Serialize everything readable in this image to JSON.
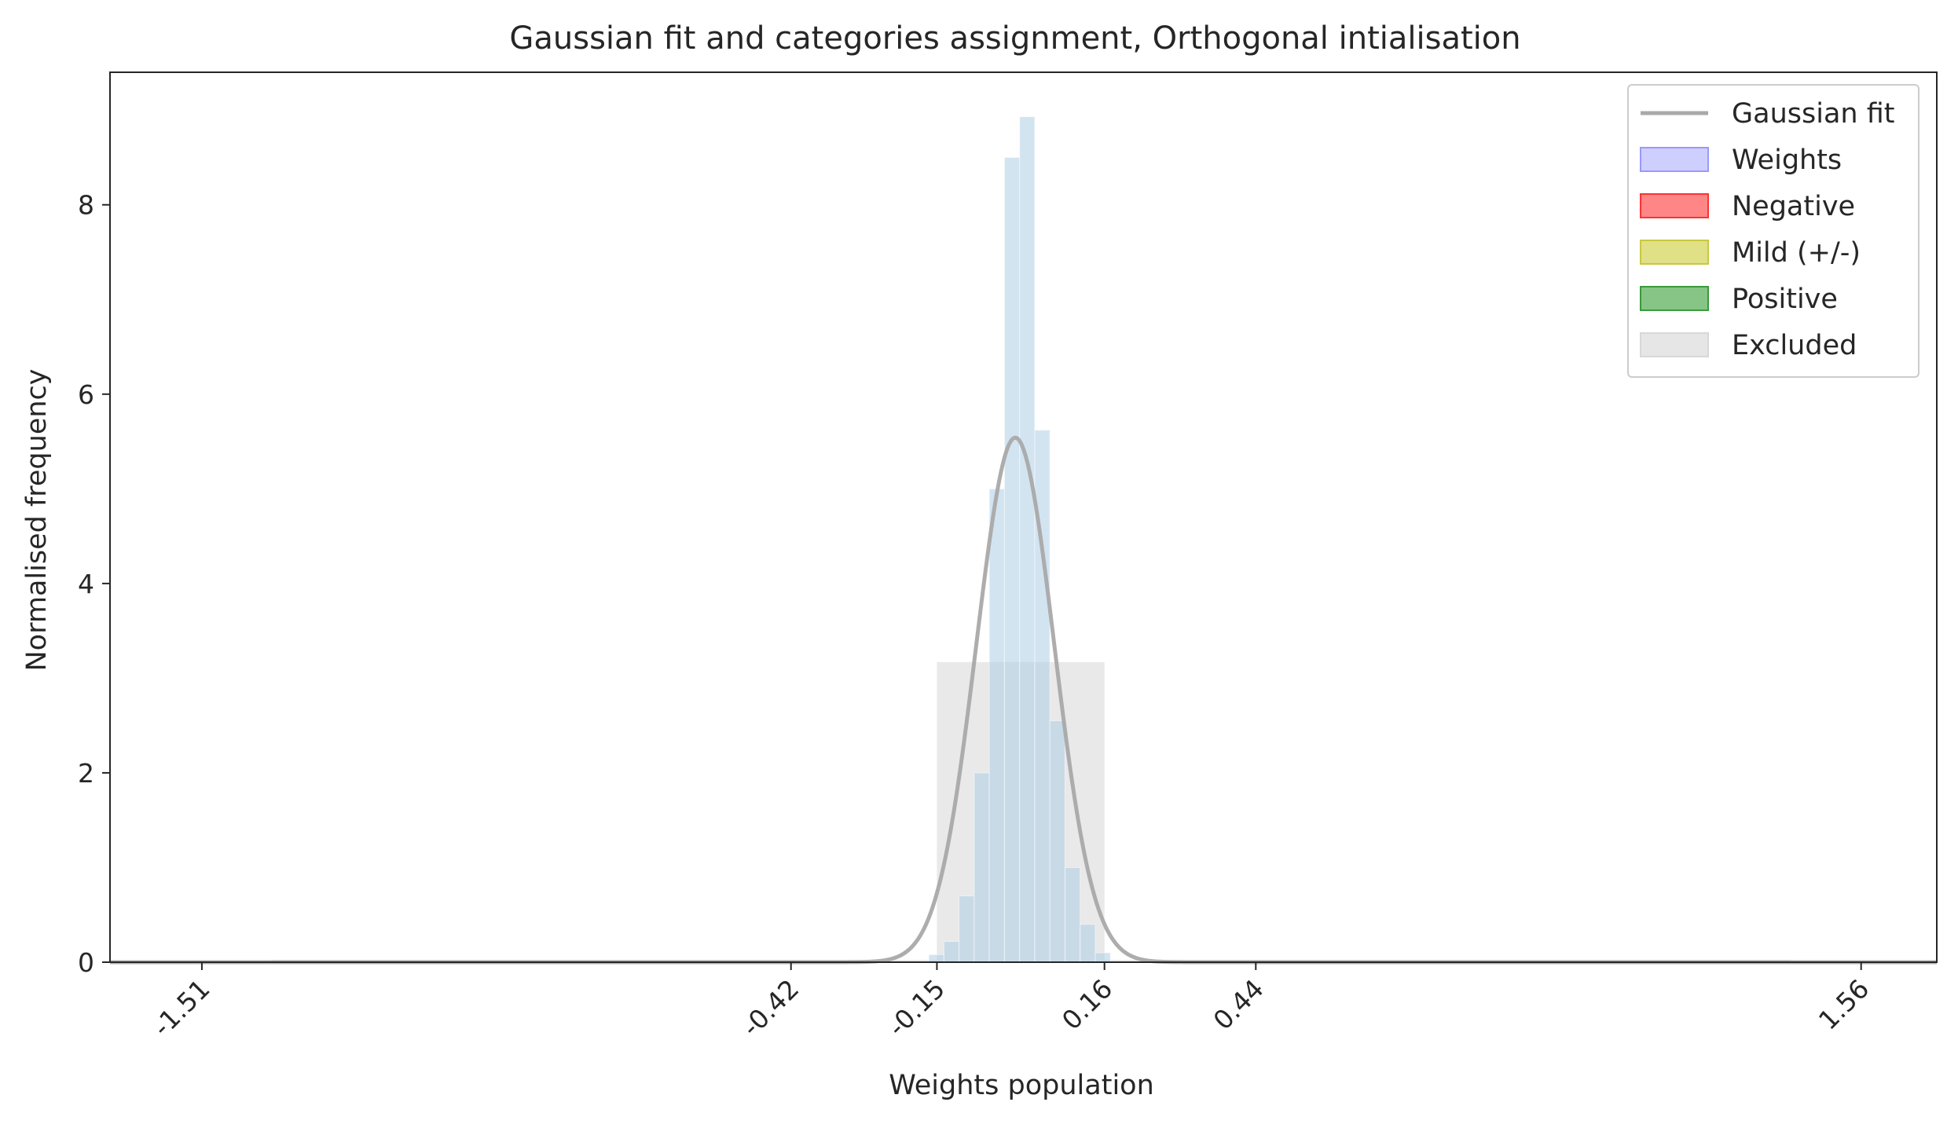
{
  "chart_data": {
    "type": "bar",
    "title": "Gaussian fit and categories assignment, Orthogonal intialisation",
    "xlabel": "Weights population",
    "ylabel": "Normalised frequency",
    "xlim": [
      -1.68,
      1.7
    ],
    "ylim": [
      0,
      9.4
    ],
    "x_ticks": [
      -1.51,
      -0.42,
      -0.15,
      0.16,
      0.44,
      1.56
    ],
    "x_tick_labels": [
      "-1.51",
      "-0.42",
      "-0.15",
      "0.16",
      "0.44",
      "1.56"
    ],
    "y_ticks": [
      0,
      2,
      4,
      6,
      8
    ],
    "y_tick_labels": [
      "0",
      "2",
      "4",
      "6",
      "8"
    ],
    "x_tick_rotation": 45,
    "grid": false,
    "legend_position": "top-right",
    "series": [
      {
        "name": "Weights",
        "kind": "histogram",
        "color": "#aecde6",
        "bin_width": 0.028,
        "bins_left": [
          -0.165,
          -0.137,
          -0.109,
          -0.081,
          -0.053,
          -0.025,
          0.003,
          0.031,
          0.059,
          0.087,
          0.115,
          0.143
        ],
        "values": [
          0.08,
          0.22,
          0.7,
          2.0,
          5.0,
          8.5,
          8.93,
          5.62,
          2.55,
          1.0,
          0.4,
          0.1
        ]
      },
      {
        "name": "Excluded",
        "kind": "band",
        "color": "#e5e5e5",
        "bands": [
          {
            "x0": -0.15,
            "x1": 0.16,
            "value": 3.17
          },
          {
            "x0": -1.38,
            "x1": -0.15,
            "value": 0.025
          },
          {
            "x0": 0.16,
            "x1": 1.43,
            "value": 0.025
          }
        ]
      },
      {
        "name": "Gaussian fit",
        "kind": "gaussian",
        "color": "#a9a9a9",
        "mean": -0.005,
        "std": 0.072
      },
      {
        "name": "Negative",
        "kind": "legend-only",
        "color": "#ff7f7f"
      },
      {
        "name": "Mild (+/-)",
        "kind": "legend-only",
        "color": "#dede80"
      },
      {
        "name": "Positive",
        "kind": "legend-only",
        "color": "#7fc27f"
      }
    ],
    "legend": [
      {
        "label": "Gaussian fit",
        "type": "line",
        "color": "#a9a9a9"
      },
      {
        "label": "Weights",
        "type": "patch",
        "color": "#ccccff",
        "edge": "#9999ff"
      },
      {
        "label": "Negative",
        "type": "patch",
        "color": "#ff7f7f",
        "edge": "#ff3333"
      },
      {
        "label": "Mild (+/-)",
        "type": "patch",
        "color": "#dede80",
        "edge": "#c8c840"
      },
      {
        "label": "Positive",
        "type": "patch",
        "color": "#7fc27f",
        "edge": "#3a9a3a"
      },
      {
        "label": "Excluded",
        "type": "patch",
        "color": "#e5e5e5",
        "edge": "#d8d8d8"
      }
    ]
  }
}
